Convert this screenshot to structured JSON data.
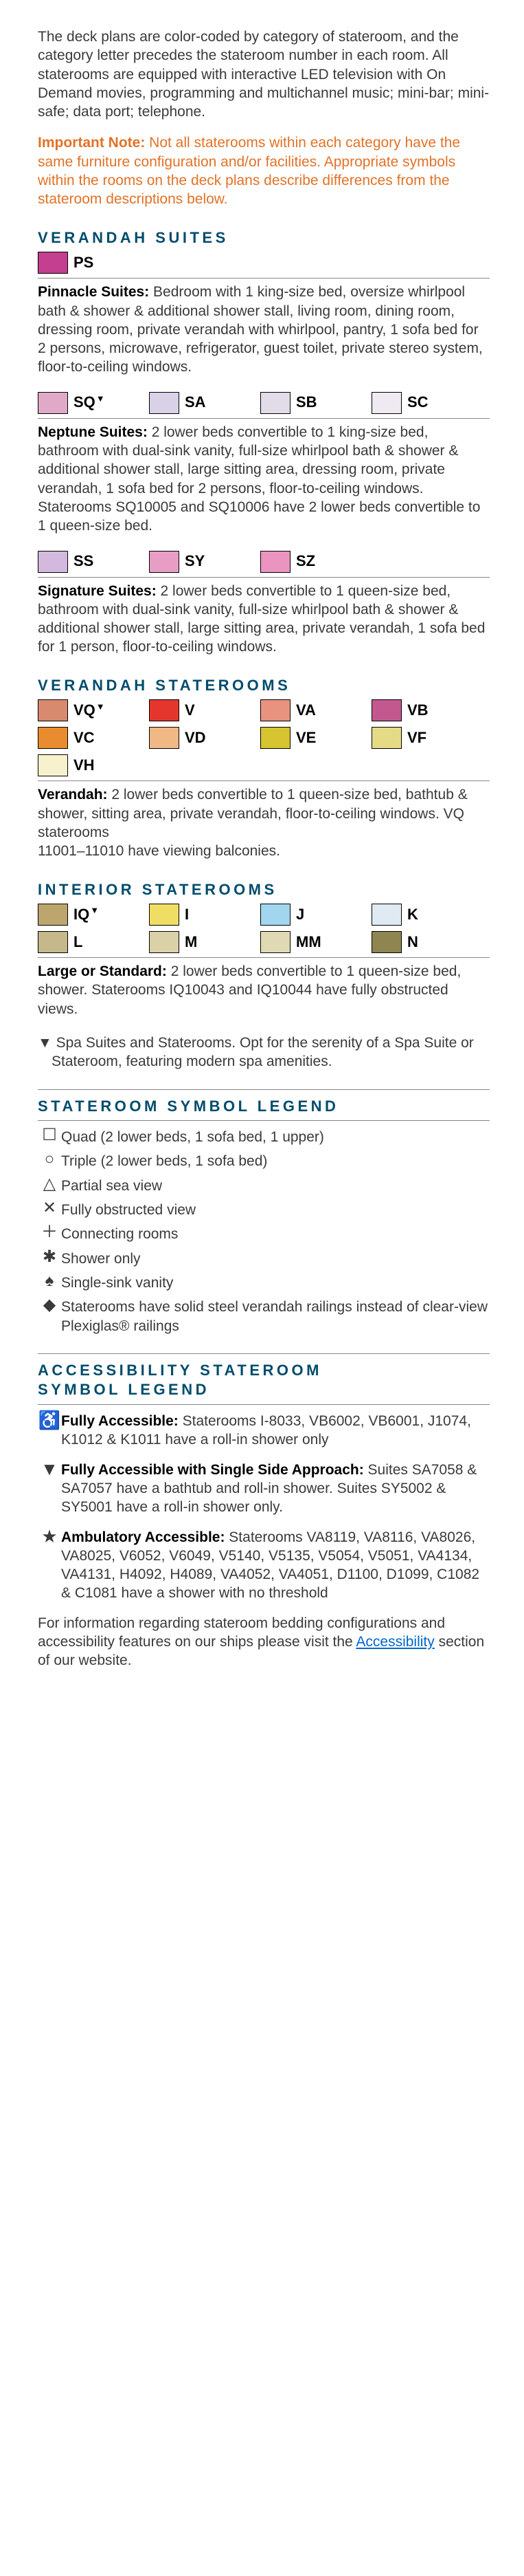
{
  "intro": "The deck plans are color-coded by category of stateroom, and the category letter precedes the stateroom number in each room. All staterooms are equipped with interactive LED television with On Demand movies, programming and multichannel music; mini-bar; mini-safe; data port; telephone.",
  "important_label": "Important Note:",
  "important_text": " Not all staterooms within each category have the same furniture configuration and/or facilities. Appropriate symbols within the rooms on the deck plans describe differences from the stateroom descriptions below.",
  "sections": {
    "verandah_suites": {
      "title": "VERANDAH SUITES",
      "ps": {
        "code": "PS",
        "color": "#c43f8f",
        "label": "Pinnacle Suites:",
        "text": " Bedroom with 1 king-size bed, oversize whirlpool bath & shower & additional shower stall, living room, dining room, dressing room, private verandah with whirlpool, pantry, 1 sofa bed for 2 persons, microwave, refrigerator, guest toilet, private stereo system, floor-to-ceiling windows."
      },
      "neptune": {
        "swatches": [
          {
            "code": "SQ",
            "color": "#e0a9c8",
            "tri": true
          },
          {
            "code": "SA",
            "color": "#d9d1e6"
          },
          {
            "code": "SB",
            "color": "#e2dce9"
          },
          {
            "code": "SC",
            "color": "#efe9f1"
          }
        ],
        "label": "Neptune Suites:",
        "text": " 2 lower beds convertible to 1 king-size bed, bathroom with dual-sink vanity, full-size whirlpool bath & shower & additional shower stall, large sitting area, dressing room, private verandah, 1 sofa bed for 2 persons, floor-to-ceiling windows. Staterooms SQ10005 and SQ10006 have 2 lower beds convertible to 1 queen-size bed."
      },
      "signature": {
        "swatches": [
          {
            "code": "SS",
            "color": "#d4b9df"
          },
          {
            "code": "SY",
            "color": "#e89ec4"
          },
          {
            "code": "SZ",
            "color": "#ec94c0"
          }
        ],
        "label": "Signature Suites:",
        "text": " 2 lower beds convertible to 1 queen-size bed, bathroom with dual-sink vanity, full-size whirlpool bath & shower & additional shower stall, large sitting area, private verandah, 1 sofa bed for 1 person, floor-to-ceiling windows."
      }
    },
    "verandah_staterooms": {
      "title": "VERANDAH STATEROOMS",
      "swatches": [
        {
          "code": "VQ",
          "color": "#d88a6f",
          "tri": true
        },
        {
          "code": "V",
          "color": "#e5362e"
        },
        {
          "code": "VA",
          "color": "#e8937f"
        },
        {
          "code": "VB",
          "color": "#c3588e"
        },
        {
          "code": "VC",
          "color": "#e98c2f"
        },
        {
          "code": "VD",
          "color": "#f0b884"
        },
        {
          "code": "VE",
          "color": "#d6c430"
        },
        {
          "code": "VF",
          "color": "#e5db87"
        },
        {
          "code": "VH",
          "color": "#f7f2cd"
        }
      ],
      "label": "Verandah:",
      "text": " 2 lower beds convertible to 1 queen-size bed, bathtub & shower, sitting area, private verandah, floor-to-ceiling windows. VQ staterooms",
      "text2": "11001–11010 have viewing balconies."
    },
    "interior": {
      "title": "INTERIOR STATEROOMS",
      "swatches": [
        {
          "code": "IQ",
          "color": "#bda56e",
          "tri": true
        },
        {
          "code": "I",
          "color": "#efde63"
        },
        {
          "code": "J",
          "color": "#a1d6ee"
        },
        {
          "code": "K",
          "color": "#dfeaf3"
        },
        {
          "code": "L",
          "color": "#c5b88a"
        },
        {
          "code": "M",
          "color": "#dad1a9"
        },
        {
          "code": "MM",
          "color": "#e0dab4"
        },
        {
          "code": "N",
          "color": "#8f8550"
        }
      ],
      "label": "Large or Standard:",
      "text": " 2 lower beds convertible to 1 queen-size bed, shower. Staterooms IQ10043 and IQ10044 have fully obstructed views."
    }
  },
  "spa_note": "Spa Suites and Staterooms. Opt for the serenity of a Spa Suite or Stateroom, featuring modern spa amenities.",
  "symbol_legend": {
    "title": "STATEROOM SYMBOL LEGEND",
    "items": [
      {
        "sym": "☐",
        "text": "Quad (2 lower beds, 1 sofa bed, 1 upper)"
      },
      {
        "sym": "○",
        "text": "Triple (2 lower beds, 1 sofa bed)"
      },
      {
        "sym": "△",
        "text": "Partial sea view"
      },
      {
        "sym": "✕",
        "text": "Fully obstructed view"
      },
      {
        "sym": "＋",
        "text": "Connecting rooms"
      },
      {
        "sym": "✱",
        "text": "Shower only"
      },
      {
        "sym": "♠",
        "text": "Single-sink vanity"
      },
      {
        "sym": "◆",
        "text": "Staterooms have solid steel verandah railings instead of clear-view Plexiglas® railings"
      }
    ]
  },
  "accessibility": {
    "title1": "ACCESSIBILITY STATEROOM",
    "title2": "SYMBOL LEGEND",
    "items": [
      {
        "sym": "♿",
        "label": "Fully Accessible:",
        "text": " Staterooms I-8033, VB6002, VB6001, J1074, K1012 & K1011 have a roll-in shower only"
      },
      {
        "sym": "▼",
        "label": "Fully Accessible with Single Side Approach:",
        "text": " Suites SA7058 & SA7057 have a bathtub and roll-in shower. Suites SY5002 & SY5001 have a roll-in shower only."
      },
      {
        "sym": "★",
        "label": "Ambulatory Accessible:",
        "text": " Staterooms VA8119, VA8116, VA8026, VA8025, V6052, V6049, V5140, V5135, V5054, V5051, VA4134, VA4131, H4092, H4089, VA4052, VA4051, D1100, D1099, C1082 & C1081 have a shower with no threshold"
      }
    ]
  },
  "footer_pre": "For information regarding stateroom bedding configurations and accessibility features on our ships please visit the ",
  "footer_link": "Accessibility",
  "footer_post": " section of our website."
}
